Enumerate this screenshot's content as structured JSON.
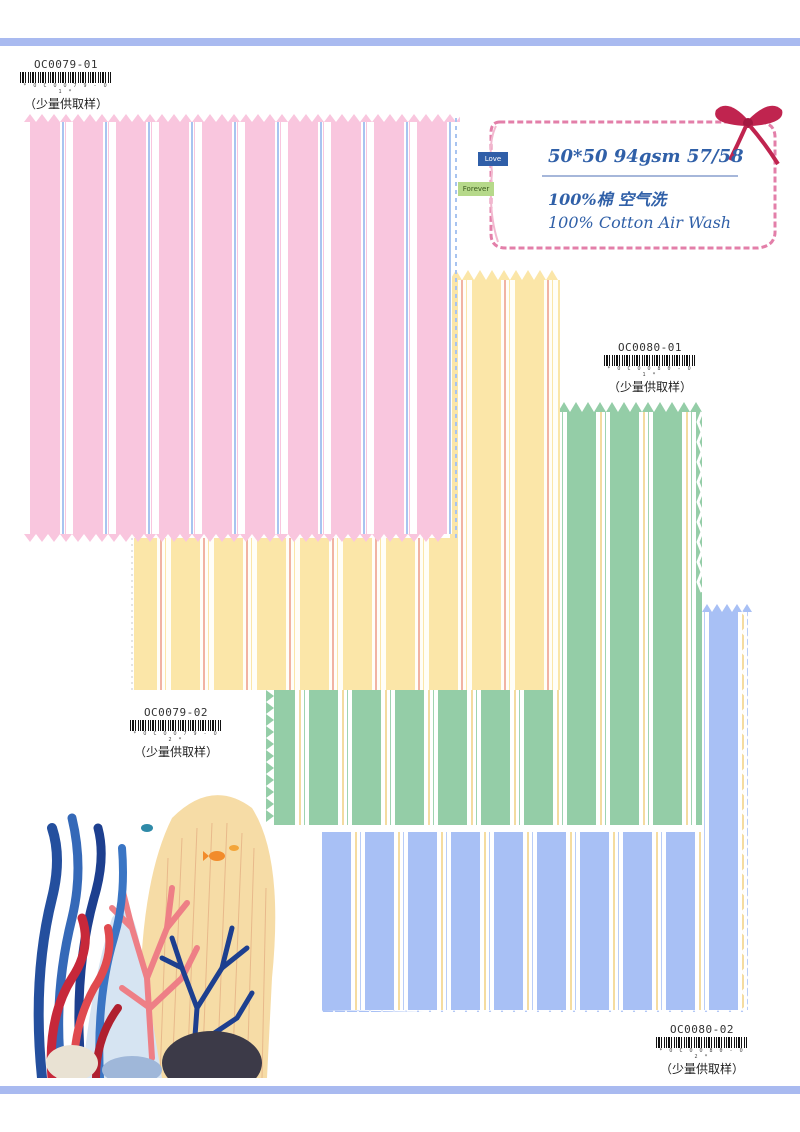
{
  "colors": {
    "band": "#a9baf0",
    "pink": "#f9c6de",
    "yellow": "#fbe6a8",
    "green": "#94cda7",
    "blue": "#a8c0f5",
    "spec_text": "#3060a8",
    "spec_border": "#e37fa9",
    "bow": "#c0244f"
  },
  "spec_card": {
    "line1": "50*50 94gsm 57/58",
    "line2": "100%棉  空气洗",
    "line3": "100% Cotton  Air Wash",
    "tag_love": "Love",
    "tag_forever": "Forever"
  },
  "samples": [
    {
      "code": "OC0079-01",
      "barcode_digits": "* O C O O 7 9 - O 1 *",
      "note": "（少量供取样）",
      "swatch_color": "pink"
    },
    {
      "code": "OC0079-02",
      "barcode_digits": "* O C O O 7 9 - O 2 *",
      "note": "（少量供取样）",
      "swatch_color": "yellow"
    },
    {
      "code": "OC0080-01",
      "barcode_digits": "* O C O O 8 0 - O 1 *",
      "note": "（少量供取样）",
      "swatch_color": "green"
    },
    {
      "code": "OC0080-02",
      "barcode_digits": "* O C O O 8 0 - O 2 *",
      "note": "（少量供取样）",
      "swatch_color": "blue"
    }
  ],
  "illustration": {
    "icon": "coral-reef-illustration"
  }
}
